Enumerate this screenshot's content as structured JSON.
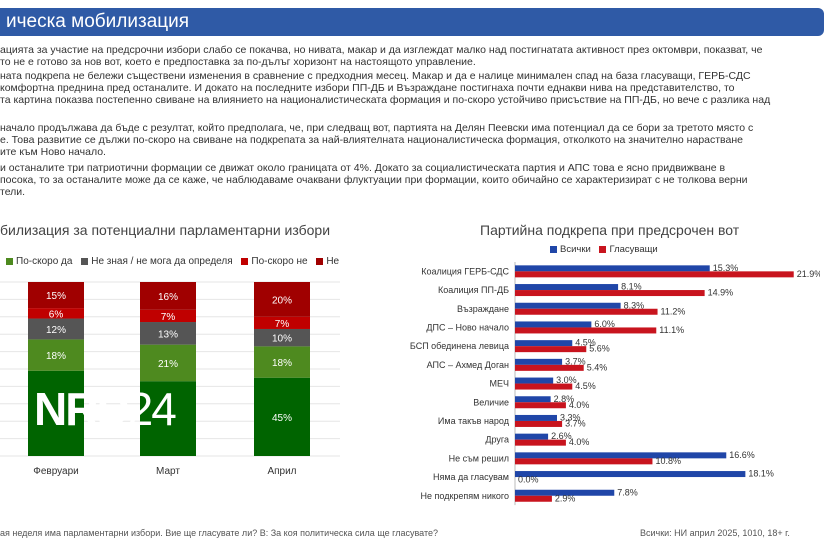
{
  "header": {
    "title": "ическа мобилизация"
  },
  "paragraphs": [
    "ацията за участие на предсрочни избори слабо се покачва, но нивата, макар и да изглеждат малко над постигнатата активност през октомври, показват, че",
    "то не е готово за нов вот, което е предпоставка за по-дълъг хоризонт на настоящото управление.",
    "ната подкрепа не бележи съществени изменения в сравнение с предходния месец. Макар и да е налице минимален спад на база гласуващи, ГЕРБ-СДС",
    "комфортна преднина пред останалите. И докато на последните избори ПП-ДБ и Възраждане постигнаха почти еднакви нива на представителство, то",
    "та картина показва постепенно свиване на  влиянието на националистическата формация и по-скоро устойчиво присъствие на ПП-ДБ, но вече с разлика над",
    "",
    "начало продължава да бъде с резултат, който предполага, че, при следващ вот, партията на Делян Пеевски има потенциал да се бори за третото място с",
    "е. Това развитие се дължи по-скоро на свиване на подкрепата за най-влиятелната националистическа формация, отколкото на значително нарастване",
    "ите към Ново начало.",
    "и останалите три патриотични формации се движат около границата от 4%. Докато за социалистическата партия и АПС това е ясно придвижване в",
    "посока, то за останалите може да се каже, че наблюдаваме очаквани флуктуации при формации, които обичайно се характеризират с не толкова верни",
    "тели."
  ],
  "left_chart": {
    "title": "билизация за потенциални парламентарни избори",
    "legend": [
      {
        "label": "По-скоро да",
        "color": "#4e8a1f"
      },
      {
        "label": "Не зная / не мога да определя",
        "color": "#555555"
      },
      {
        "label": "По-скоро не",
        "color": "#c00000"
      },
      {
        "label": "Не",
        "color": "#a00000"
      }
    ]
  },
  "right_chart": {
    "title": "Партийна подкрепа при предсрочен вот",
    "legend": [
      {
        "label": "Всички",
        "color": "#2046a8"
      },
      {
        "label": "Гласуващи",
        "color": "#c8141e"
      }
    ]
  },
  "watermark": {
    "main": "NRD",
    "suffix": "24"
  },
  "footer": {
    "left": "ая неделя има парламентарни избори. Вие ще гласувате ли? В: За коя политическа сила ще гласувате?",
    "right": "Всички: НИ април 2025, 1010, 18+ г."
  },
  "chart_data": [
    {
      "type": "bar",
      "stacked": true,
      "title": "билизация за потенциални парламентарни избори",
      "categories": [
        "Февруари",
        "Март",
        "Април"
      ],
      "series": [
        {
          "name": "",
          "color": "#006400",
          "values": [
            49,
            43,
            45
          ],
          "labels": [
            "",
            "",
            "45%"
          ]
        },
        {
          "name": "По-скоро да",
          "color": "#4e8a1f",
          "values": [
            18,
            21,
            18
          ],
          "labels": [
            "18%",
            "21%",
            "18%"
          ]
        },
        {
          "name": "Не зная / не мога да определя",
          "color": "#555555",
          "values": [
            12,
            13,
            10
          ],
          "labels": [
            "12%",
            "13%",
            "10%"
          ]
        },
        {
          "name": "По-скоро не",
          "color": "#c00000",
          "values": [
            6,
            7,
            7
          ],
          "labels": [
            "6%",
            "7%",
            "7%"
          ]
        },
        {
          "name": "Не",
          "color": "#a00000",
          "values": [
            15,
            16,
            20
          ],
          "labels": [
            "15%",
            "16%",
            "20%"
          ]
        }
      ],
      "ylim": [
        0,
        100
      ]
    },
    {
      "type": "bar",
      "orientation": "horizontal",
      "title": "Партийна подкрепа при предсрочен вот",
      "categories": [
        "Коалиция ГЕРБ-СДС",
        "Коалиция ПП-ДБ",
        "Възраждане",
        "ДПС – Ново начало",
        "БСП обединена левица",
        "АПС – Ахмед Доган",
        "МЕЧ",
        "Величие",
        "Има такъв народ",
        "Друга",
        "Не съм решил",
        "Няма да гласувам",
        "Не подкрепям никого"
      ],
      "series": [
        {
          "name": "Всички",
          "color": "#2046a8",
          "values": [
            15.3,
            8.1,
            8.3,
            6.0,
            4.5,
            3.7,
            3.0,
            2.8,
            3.3,
            2.6,
            16.6,
            18.1,
            7.8
          ]
        },
        {
          "name": "Гласуващи",
          "color": "#c8141e",
          "values": [
            21.9,
            14.9,
            11.2,
            11.1,
            5.6,
            5.4,
            4.5,
            4.0,
            3.7,
            4.0,
            10.8,
            0.0,
            2.9
          ]
        }
      ],
      "xlim": [
        0,
        22
      ]
    }
  ]
}
